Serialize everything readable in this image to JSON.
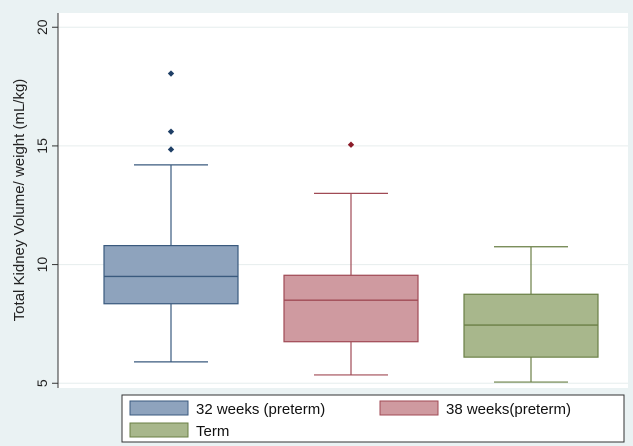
{
  "chart_data": {
    "type": "box",
    "ylabel": "Total Kidney Volume/ weight (mL/kg)",
    "yticks": [
      5,
      10,
      15,
      20
    ],
    "ylim": [
      4.8,
      20.6
    ],
    "grid": "horizontal",
    "legend_position": "bottom",
    "series": [
      {
        "name": "32 weeks (preterm)",
        "color": "#8ea3bd",
        "stroke": "#3a5a7e",
        "outlier_color": "#1f3f66",
        "whisker_low": 5.9,
        "q1": 8.35,
        "median": 9.5,
        "q3": 10.8,
        "whisker_high": 14.2,
        "outliers": [
          14.85,
          15.6,
          18.05
        ]
      },
      {
        "name": "38 weeks(preterm)",
        "color": "#cf9aa0",
        "stroke": "#a04a55",
        "outlier_color": "#8b1b28",
        "whisker_low": 5.35,
        "q1": 6.75,
        "median": 8.5,
        "q3": 9.55,
        "whisker_high": 13.0,
        "outliers": [
          15.05
        ]
      },
      {
        "name": "Term",
        "color": "#a8b78c",
        "stroke": "#6a7f45",
        "outlier_color": "#4e6330",
        "whisker_low": 5.05,
        "q1": 6.1,
        "median": 7.45,
        "q3": 8.75,
        "whisker_high": 10.75,
        "outliers": []
      }
    ]
  }
}
